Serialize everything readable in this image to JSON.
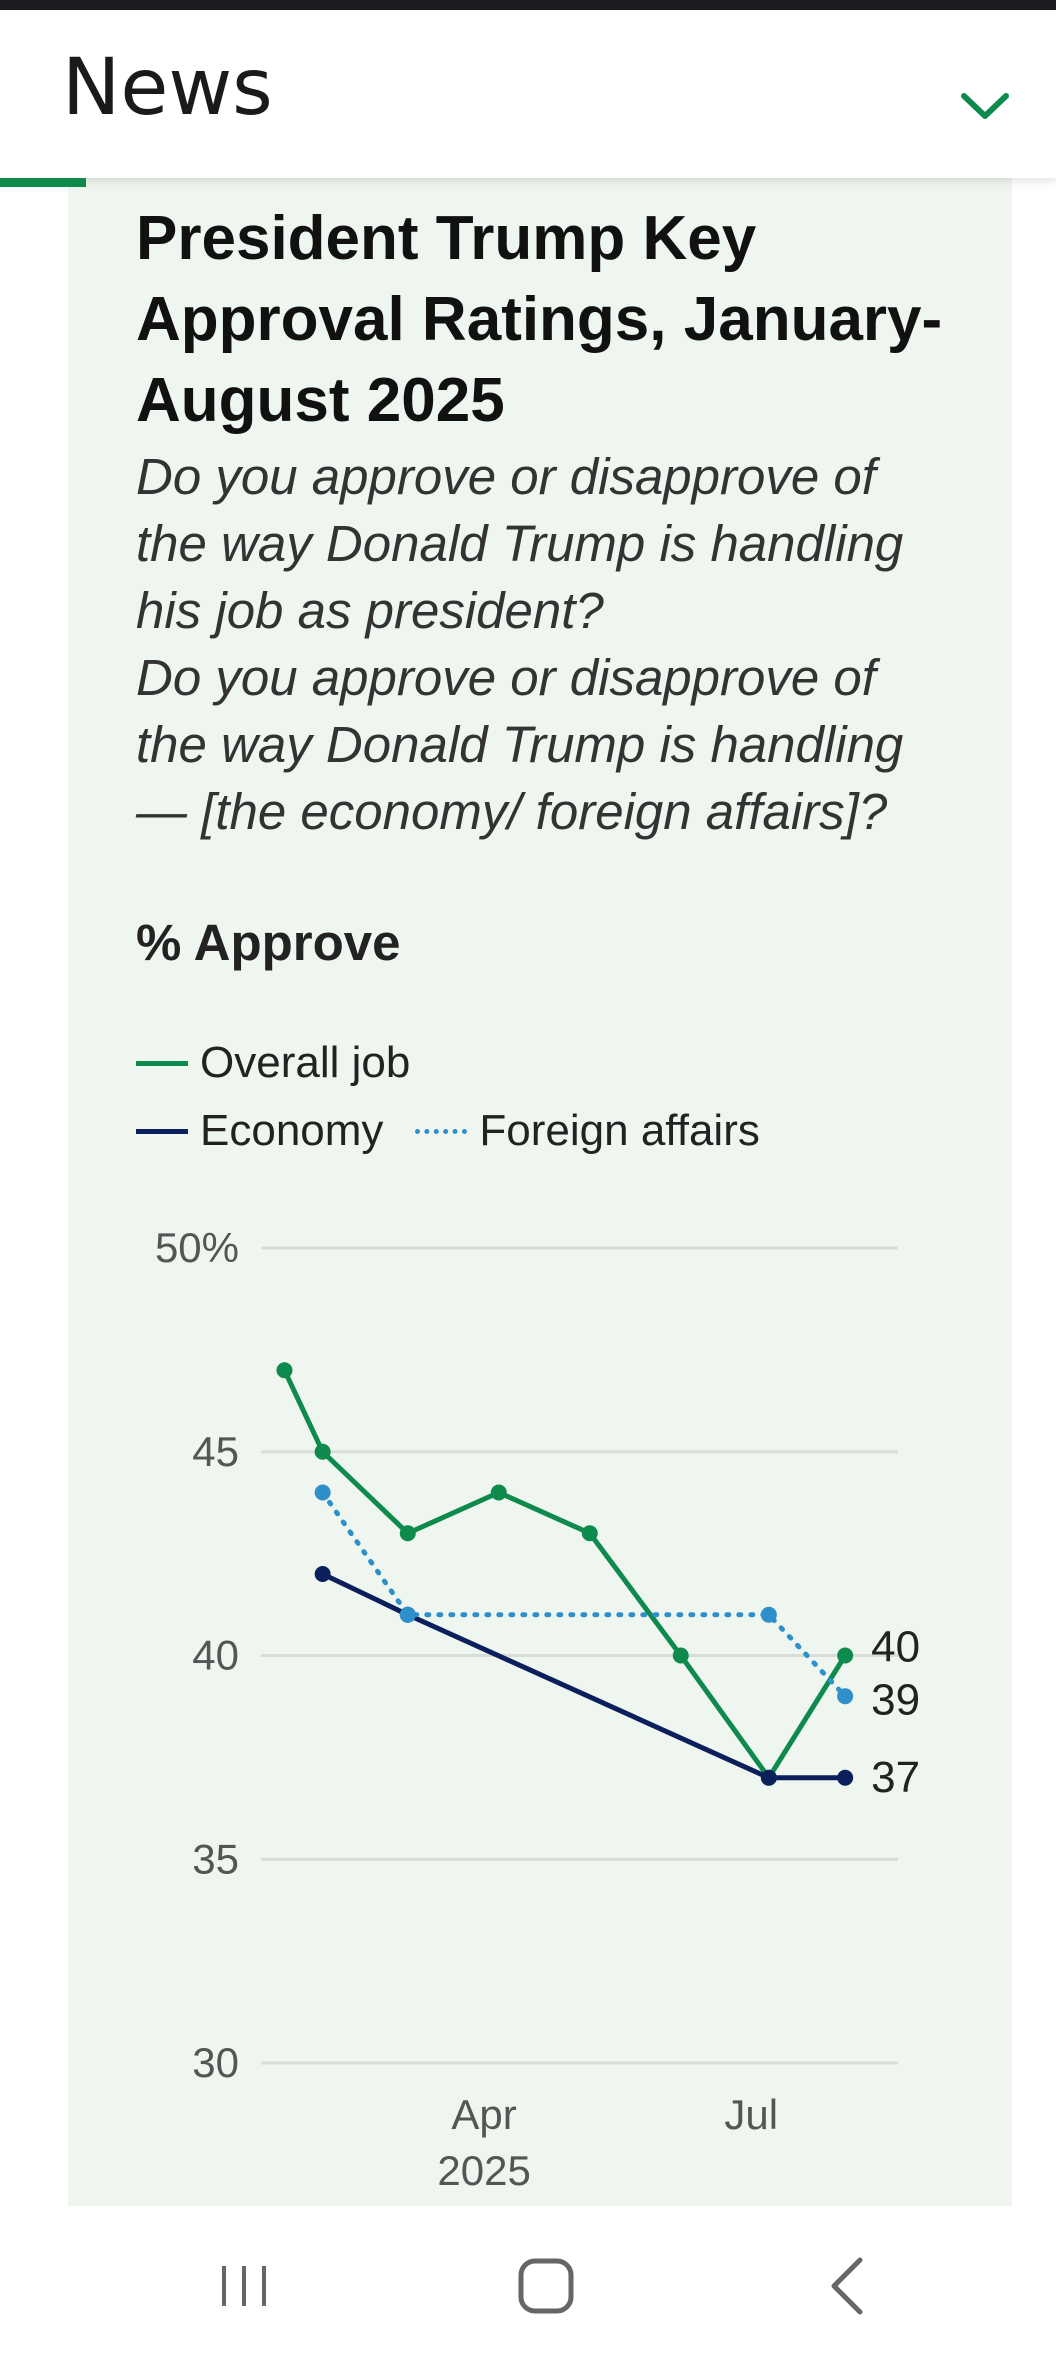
{
  "header": {
    "title": "News",
    "dropdown_icon": "chevron-down-icon",
    "accent": "#0e8a4c"
  },
  "card": {
    "title": "President Trump Key Approval Ratings, January-August 2025",
    "subtitle_1": "Do you approve or disapprove of the way Donald Trump is handling his job as president?",
    "subtitle_2": "Do you approve or disapprove of the way Donald Trump is handling — [the economy/ foreign affairs]?",
    "measure": "% Approve"
  },
  "chart_data": {
    "type": "line",
    "ylim": [
      30,
      50
    ],
    "yticks": [
      30,
      35,
      40,
      45,
      50
    ],
    "ytick_labels": [
      "30",
      "35",
      "40",
      "45",
      "50%"
    ],
    "xlim": [
      "2025-01-15",
      "2025-08-20"
    ],
    "xticks": [
      {
        "date": "2025-04-01",
        "label": "Apr",
        "sublabel": "2025"
      },
      {
        "date": "2025-07-01",
        "label": "Jul",
        "sublabel": ""
      }
    ],
    "grid": true,
    "legend_placement": "top-left",
    "series": [
      {
        "name": "Overall job",
        "color": "#0e8a4c",
        "dash": "solid",
        "points": [
          {
            "x": "2025-01-23",
            "y": 47
          },
          {
            "x": "2025-02-05",
            "y": 45
          },
          {
            "x": "2025-03-06",
            "y": 43
          },
          {
            "x": "2025-04-06",
            "y": 44
          },
          {
            "x": "2025-05-07",
            "y": 43
          },
          {
            "x": "2025-06-07",
            "y": 40
          },
          {
            "x": "2025-07-07",
            "y": 37
          },
          {
            "x": "2025-08-02",
            "y": 40
          }
        ],
        "end_label": "40"
      },
      {
        "name": "Economy",
        "color": "#0a1f5c",
        "dash": "solid",
        "points": [
          {
            "x": "2025-02-05",
            "y": 42
          },
          {
            "x": "2025-03-06",
            "y": 41
          },
          {
            "x": "2025-07-07",
            "y": 37
          },
          {
            "x": "2025-08-02",
            "y": 37
          }
        ],
        "end_label": "37"
      },
      {
        "name": "Foreign affairs",
        "color": "#2e8fc9",
        "dash": "dotted",
        "points": [
          {
            "x": "2025-02-05",
            "y": 44
          },
          {
            "x": "2025-03-06",
            "y": 41
          },
          {
            "x": "2025-07-07",
            "y": 41
          },
          {
            "x": "2025-08-02",
            "y": 39
          }
        ],
        "end_label": "39"
      }
    ]
  },
  "nav": {
    "recents_icon": "recents-icon",
    "home_icon": "home-icon",
    "back_icon": "back-icon"
  }
}
